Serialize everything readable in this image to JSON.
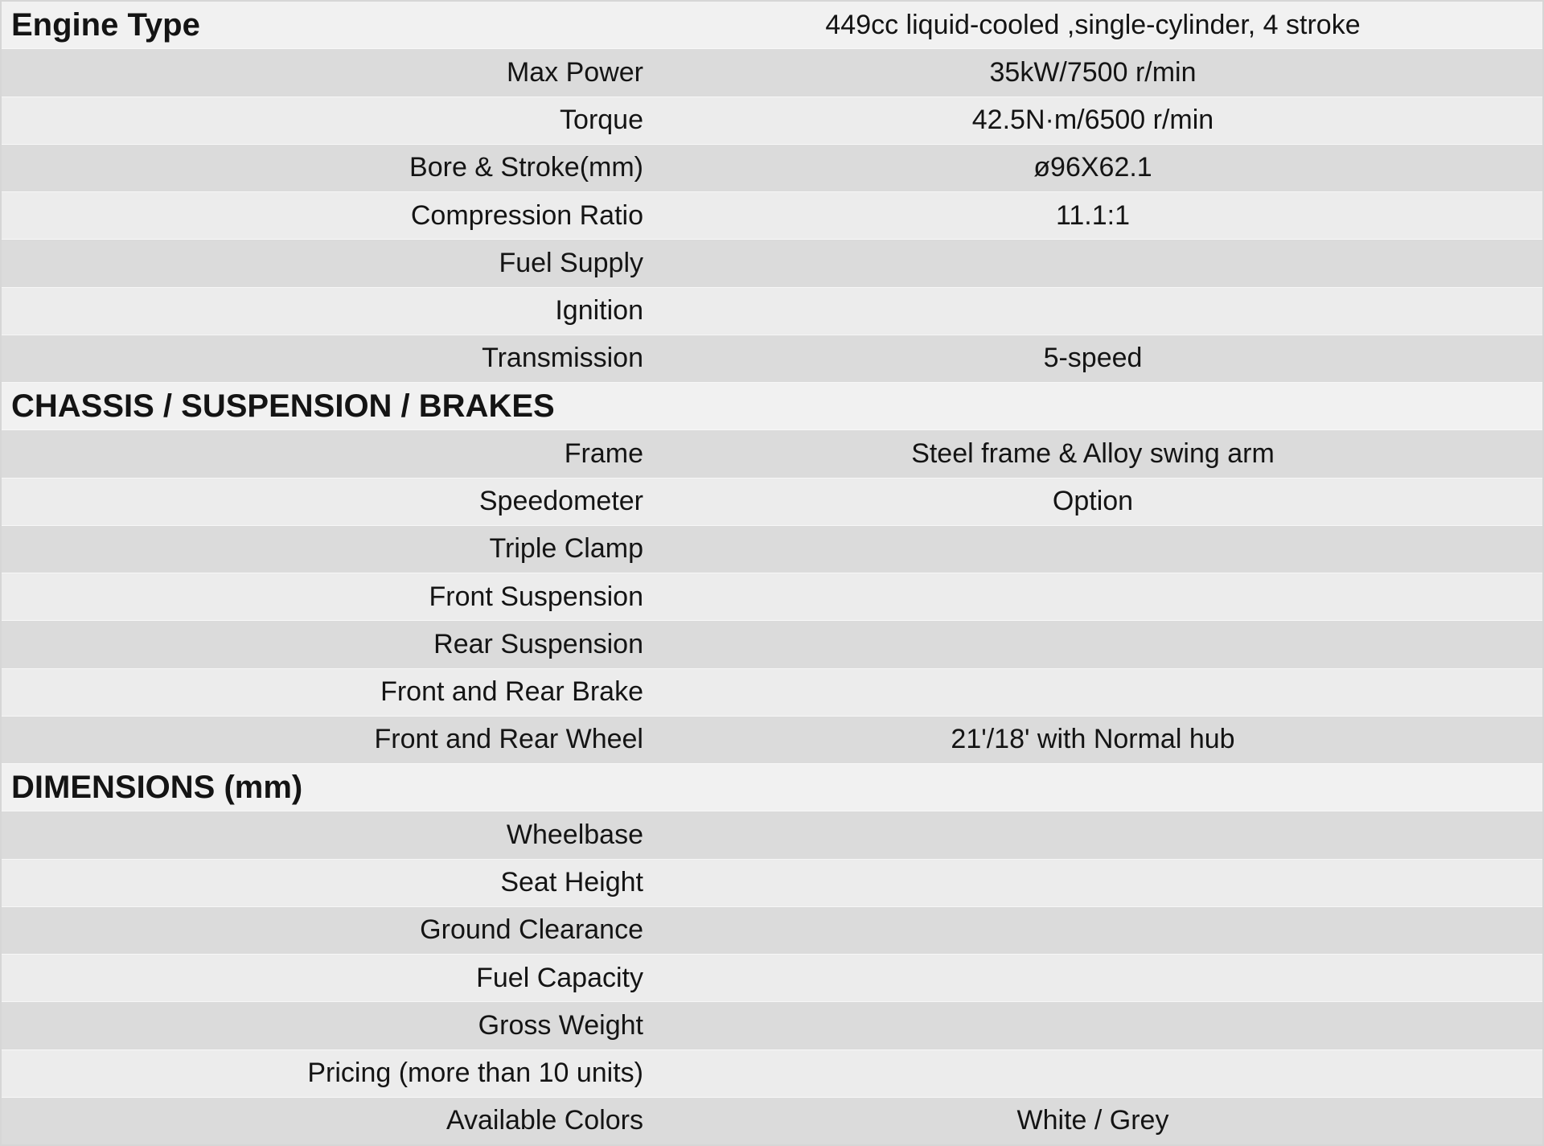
{
  "colors": {
    "row_header": "#f1f1f1",
    "row_light": "#ececec",
    "row_dark": "#dbdbdb",
    "text": "#141414",
    "page_border": "#d6d6d6"
  },
  "table": {
    "rows": [
      {
        "type": "section",
        "label": "Engine Type",
        "value": "449cc liquid-cooled ,single-cylinder, 4 stroke"
      },
      {
        "type": "spec",
        "label": "Max Power",
        "value": "35kW/7500 r/min"
      },
      {
        "type": "spec",
        "label": "Torque",
        "value": "42.5N·m/6500 r/min"
      },
      {
        "type": "spec",
        "label": "Bore & Stroke(mm)",
        "value": "ø96X62.1"
      },
      {
        "type": "spec",
        "label": "Compression Ratio",
        "value": "11.1:1"
      },
      {
        "type": "spec",
        "label": "Fuel Supply",
        "value": ""
      },
      {
        "type": "spec",
        "label": "Ignition",
        "value": ""
      },
      {
        "type": "spec",
        "label": "Transmission",
        "value": "5-speed"
      },
      {
        "type": "section",
        "label": "CHASSIS / SUSPENSION / BRAKES",
        "value": ""
      },
      {
        "type": "spec",
        "label": "Frame",
        "value": "Steel frame & Alloy swing arm"
      },
      {
        "type": "spec",
        "label": "Speedometer",
        "value": "Option"
      },
      {
        "type": "spec",
        "label": "Triple Clamp",
        "value": ""
      },
      {
        "type": "spec",
        "label": "Front Suspension",
        "value": ""
      },
      {
        "type": "spec",
        "label": "Rear Suspension",
        "value": ""
      },
      {
        "type": "spec",
        "label": "Front and Rear Brake",
        "value": ""
      },
      {
        "type": "spec",
        "label": "Front and Rear Wheel",
        "value": "21'/18' with Normal hub"
      },
      {
        "type": "section",
        "label": "DIMENSIONS (mm)",
        "value": ""
      },
      {
        "type": "spec",
        "label": "Wheelbase",
        "value": ""
      },
      {
        "type": "spec",
        "label": "Seat Height",
        "value": ""
      },
      {
        "type": "spec",
        "label": "Ground Clearance",
        "value": ""
      },
      {
        "type": "spec",
        "label": "Fuel Capacity",
        "value": ""
      },
      {
        "type": "spec",
        "label": "Gross Weight",
        "value": ""
      },
      {
        "type": "spec",
        "label": "Pricing (more than 10 units)",
        "value": ""
      },
      {
        "type": "spec",
        "label": "Available Colors",
        "value": "White / Grey"
      }
    ]
  }
}
